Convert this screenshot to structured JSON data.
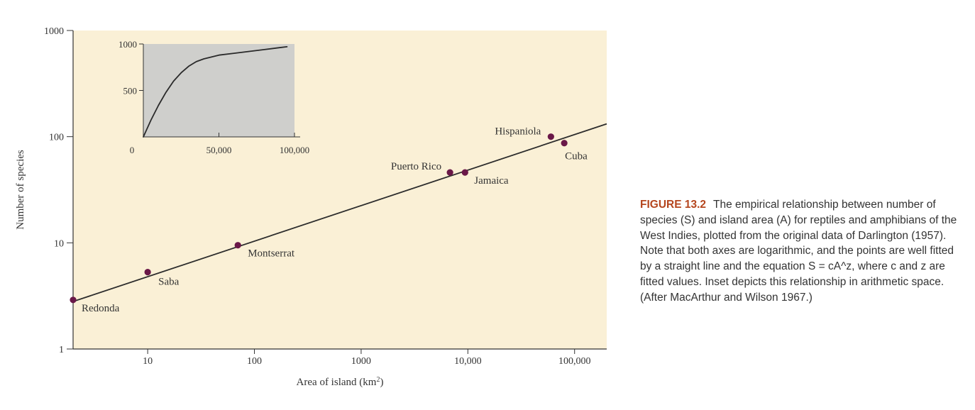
{
  "chart_data": [
    {
      "type": "scatter",
      "xlabel": "Area of island (km",
      "xlabel_sup": "2",
      "xlabel_end": ")",
      "ylabel": "Number of species",
      "x_scale": "log",
      "y_scale": "log",
      "xlim": [
        2,
        200000
      ],
      "ylim": [
        1,
        1000
      ],
      "x_ticks": [
        10,
        100,
        1000,
        10000,
        100000
      ],
      "x_tick_labels": [
        "10",
        "100",
        "1000",
        "10,000",
        "100,000"
      ],
      "y_ticks": [
        1,
        10,
        100,
        1000
      ],
      "y_tick_labels": [
        "1",
        "10",
        "100",
        "1000"
      ],
      "points": [
        {
          "label": "Redonda",
          "x": 2,
          "y": 2.9
        },
        {
          "label": "Saba",
          "x": 10,
          "y": 5.3
        },
        {
          "label": "Montserrat",
          "x": 70,
          "y": 9.5
        },
        {
          "label": "Puerto Rico",
          "x": 6800,
          "y": 46
        },
        {
          "label": "Jamaica",
          "x": 9400,
          "y": 46
        },
        {
          "label": "Hispaniola",
          "x": 60000,
          "y": 100
        },
        {
          "label": "Cuba",
          "x": 80000,
          "y": 87
        }
      ],
      "fit_line": {
        "x": [
          2,
          200000
        ],
        "y": [
          2.8,
          132
        ]
      },
      "point_color": "#6a1848",
      "background": "#faf0d6"
    },
    {
      "type": "line",
      "role": "inset",
      "x_scale": "linear",
      "y_scale": "linear",
      "xlim": [
        0,
        100000
      ],
      "ylim": [
        0,
        1000
      ],
      "x_ticks": [
        0,
        50000,
        100000
      ],
      "x_tick_labels": [
        "0",
        "50,000",
        "100,000"
      ],
      "y_ticks": [
        500,
        1000
      ],
      "y_tick_labels": [
        "500",
        "1000"
      ],
      "curve": {
        "x": [
          0,
          5000,
          10000,
          15000,
          20000,
          25000,
          30000,
          35000,
          40000,
          50000,
          60000,
          70000,
          80000,
          90000,
          95000
        ],
        "y": [
          0,
          180,
          340,
          480,
          600,
          690,
          760,
          810,
          840,
          880,
          900,
          920,
          940,
          960,
          970
        ]
      },
      "background": "#cfcfcc"
    }
  ],
  "caption": {
    "label": "FIGURE 13.2",
    "text": "The empirical relationship between number of species (S) and island area (A) for reptiles and amphibians of the West Indies, plotted from the original data of Darlington (1957). Note that both axes are logarithmic, and the points are well fitted by a straight line and the equation S = cA^z, where c and z are fitted values. Inset depicts this relationship in arithmetic space. (After MacArthur and Wilson 1967.)"
  }
}
